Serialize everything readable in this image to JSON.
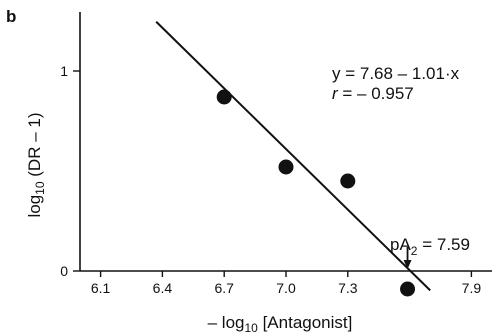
{
  "chart_data": {
    "type": "scatter",
    "panel_label": "b",
    "xlabel": {
      "pre": "– log",
      "sub": "10",
      "post": " [Antagonist]"
    },
    "ylabel": {
      "pre": "log",
      "sub": "10",
      "post": " (DR – 1)"
    },
    "xlim": [
      6.0,
      8.0
    ],
    "ylim": [
      -0.2,
      1.3
    ],
    "x_ticks": [
      {
        "value": 6.1,
        "label": "6.1"
      },
      {
        "value": 6.4,
        "label": "6.4"
      },
      {
        "value": 6.7,
        "label": "6.7"
      },
      {
        "value": 7.0,
        "label": "7.0"
      },
      {
        "value": 7.3,
        "label": "7.3"
      },
      {
        "value": 7.9,
        "label": "7.9"
      }
    ],
    "y_ticks": [
      {
        "value": 0,
        "label": "0"
      },
      {
        "value": 1,
        "label": "1"
      }
    ],
    "points": [
      {
        "x": 6.7,
        "y": 0.87
      },
      {
        "x": 7.0,
        "y": 0.52
      },
      {
        "x": 7.3,
        "y": 0.45
      },
      {
        "x": 7.59,
        "y": -0.09
      }
    ],
    "regression": {
      "intercept": 7.68,
      "slope": -1.01,
      "x_range": [
        6.37,
        7.7
      ],
      "equation": "y = 7.68 – 1.01·x",
      "r_text": {
        "pre": "r",
        "post": " = – 0.957"
      }
    },
    "pA2": {
      "value": 7.59,
      "label": {
        "pre": "pA",
        "sub": "2",
        "post": " = 7.59"
      }
    },
    "grid": false,
    "legend": "none"
  }
}
